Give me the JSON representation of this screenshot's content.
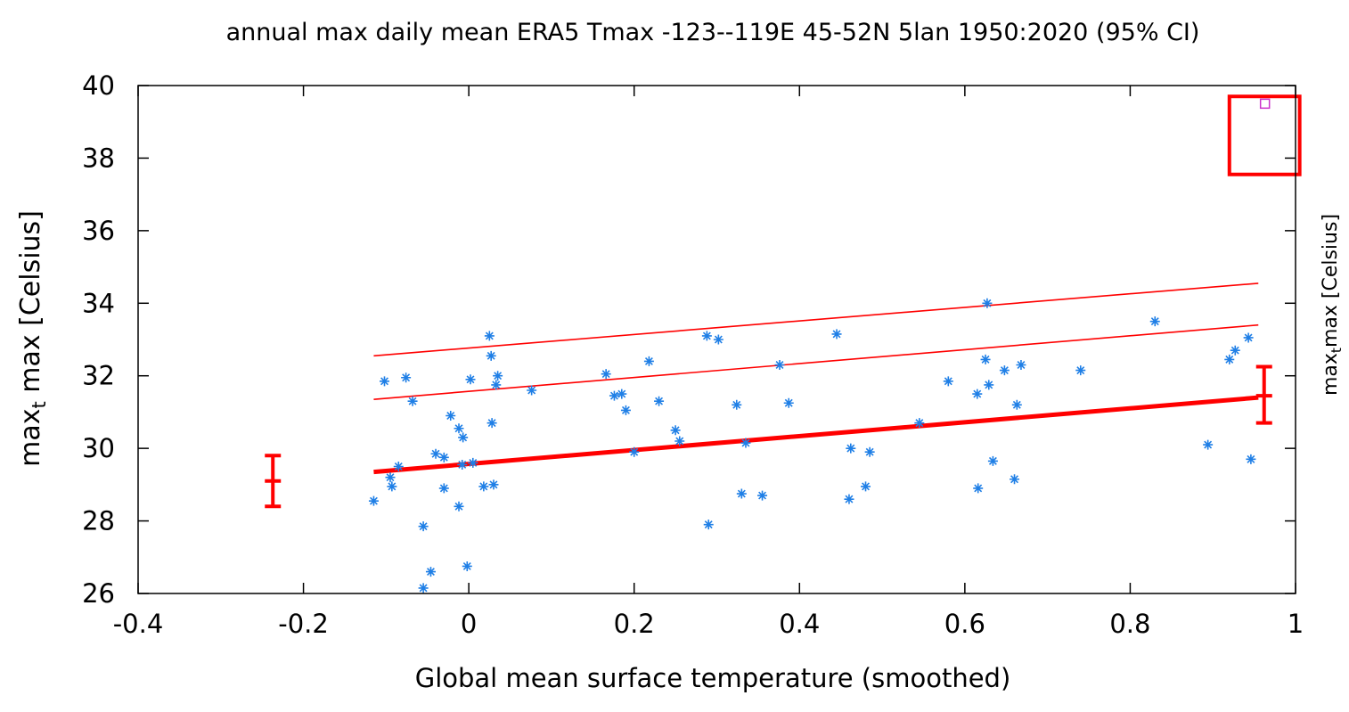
{
  "chart_data": {
    "type": "scatter",
    "title": "annual max daily mean ERA5 Tmax -123--119E 45-52N 5lan 1950:2020 (95% CI)",
    "xlabel": "Global mean surface temperature (smoothed)",
    "ylabel": {
      "pre": "max",
      "sub": "t",
      "post": " max [Celsius]"
    },
    "y2label": {
      "pre": "max",
      "sub": "t",
      "post": "max [Celsius]"
    },
    "xlim": [
      -0.4,
      1.0
    ],
    "ylim": [
      26,
      40
    ],
    "xticks": [
      {
        "v": -0.4,
        "label": "-0.4"
      },
      {
        "v": -0.2,
        "label": "-0.2"
      },
      {
        "v": 0,
        "label": "0"
      },
      {
        "v": 0.2,
        "label": "0.2"
      },
      {
        "v": 0.4,
        "label": "0.4"
      },
      {
        "v": 0.6,
        "label": "0.6"
      },
      {
        "v": 0.8,
        "label": "0.8"
      },
      {
        "v": 1.0,
        "label": "1"
      }
    ],
    "yticks": [
      {
        "v": 26,
        "label": "26"
      },
      {
        "v": 28,
        "label": "28"
      },
      {
        "v": 30,
        "label": "30"
      },
      {
        "v": 32,
        "label": "32"
      },
      {
        "v": 34,
        "label": "34"
      },
      {
        "v": 36,
        "label": "36"
      },
      {
        "v": 38,
        "label": "38"
      },
      {
        "v": 40,
        "label": "40"
      }
    ],
    "colors": {
      "points": "#1f7fe6",
      "fit": "#ff0000",
      "observed": "#cc33cc",
      "highlight": "#ff0000"
    },
    "points": [
      [
        -0.115,
        28.55
      ],
      [
        -0.102,
        31.85
      ],
      [
        -0.095,
        29.2
      ],
      [
        -0.093,
        28.95
      ],
      [
        -0.085,
        29.5
      ],
      [
        -0.076,
        31.95
      ],
      [
        -0.068,
        31.3
      ],
      [
        -0.055,
        27.85
      ],
      [
        -0.055,
        26.15
      ],
      [
        -0.046,
        26.6
      ],
      [
        -0.04,
        29.85
      ],
      [
        -0.03,
        29.75
      ],
      [
        -0.03,
        28.9
      ],
      [
        -0.022,
        30.9
      ],
      [
        -0.012,
        30.55
      ],
      [
        -0.012,
        28.4
      ],
      [
        -0.008,
        29.55
      ],
      [
        -0.007,
        30.3
      ],
      [
        -0.002,
        26.75
      ],
      [
        0.002,
        31.9
      ],
      [
        0.005,
        29.6
      ],
      [
        0.018,
        28.95
      ],
      [
        0.025,
        33.1
      ],
      [
        0.027,
        32.55
      ],
      [
        0.028,
        30.7
      ],
      [
        0.03,
        29.0
      ],
      [
        0.033,
        31.75
      ],
      [
        0.035,
        32.0
      ],
      [
        0.076,
        31.6
      ],
      [
        0.166,
        32.05
      ],
      [
        0.176,
        31.45
      ],
      [
        0.185,
        31.5
      ],
      [
        0.19,
        31.05
      ],
      [
        0.2,
        29.9
      ],
      [
        0.218,
        32.4
      ],
      [
        0.23,
        31.3
      ],
      [
        0.25,
        30.5
      ],
      [
        0.255,
        30.2
      ],
      [
        0.288,
        33.1
      ],
      [
        0.29,
        27.9
      ],
      [
        0.302,
        33.0
      ],
      [
        0.324,
        31.2
      ],
      [
        0.33,
        28.75
      ],
      [
        0.335,
        30.15
      ],
      [
        0.355,
        28.7
      ],
      [
        0.376,
        32.3
      ],
      [
        0.387,
        31.25
      ],
      [
        0.445,
        33.15
      ],
      [
        0.46,
        28.6
      ],
      [
        0.462,
        30.0
      ],
      [
        0.48,
        28.95
      ],
      [
        0.485,
        29.9
      ],
      [
        0.545,
        30.7
      ],
      [
        0.58,
        31.85
      ],
      [
        0.615,
        31.5
      ],
      [
        0.616,
        28.9
      ],
      [
        0.625,
        32.45
      ],
      [
        0.627,
        34.0
      ],
      [
        0.629,
        31.75
      ],
      [
        0.634,
        29.65
      ],
      [
        0.648,
        32.15
      ],
      [
        0.66,
        29.15
      ],
      [
        0.663,
        31.2
      ],
      [
        0.668,
        32.3
      ],
      [
        0.74,
        32.15
      ],
      [
        0.83,
        33.5
      ],
      [
        0.894,
        30.1
      ],
      [
        0.92,
        32.45
      ],
      [
        0.927,
        32.7
      ],
      [
        0.943,
        33.05
      ],
      [
        0.946,
        29.7
      ]
    ],
    "fit_lines": [
      {
        "role": "mean",
        "x": [
          -0.115,
          0.955
        ],
        "y": [
          29.35,
          31.4
        ],
        "width": 5
      },
      {
        "role": "upper1",
        "x": [
          -0.115,
          0.955
        ],
        "y": [
          31.35,
          33.4
        ],
        "width": 1.6
      },
      {
        "role": "upper2",
        "x": [
          -0.115,
          0.955
        ],
        "y": [
          32.55,
          34.55
        ],
        "width": 1.6
      }
    ],
    "error_bars": [
      {
        "x": -0.237,
        "y": 29.1,
        "low": 28.4,
        "high": 29.8
      },
      {
        "x": 0.962,
        "y": 31.45,
        "low": 30.7,
        "high": 32.25
      }
    ],
    "observed": {
      "x": 0.963,
      "y": 39.5
    },
    "highlight_box": {
      "x0": 0.92,
      "x1": 1.005,
      "y0": 37.55,
      "y1": 39.7
    }
  }
}
